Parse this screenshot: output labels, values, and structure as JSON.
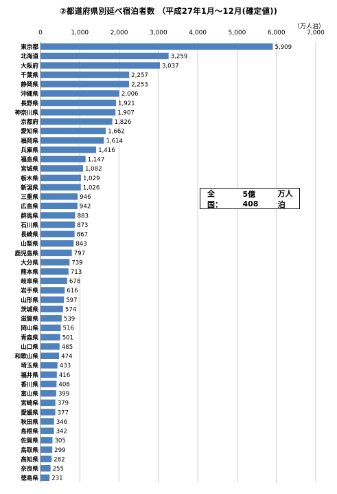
{
  "chart_data": {
    "type": "bar",
    "orientation": "horizontal",
    "title": "②都道府県別延べ宿泊者数 （平成27年1月～12月(確定値))",
    "unit": "（万人泊）",
    "xlim": [
      0,
      7000
    ],
    "ticks": [
      "0",
      "1,000",
      "2,000",
      "3,000",
      "4,000",
      "5,000",
      "6,000",
      "7,000"
    ],
    "grid": true,
    "bar_color": "#4f81bd",
    "categories": [
      "東京都",
      "北海道",
      "大阪府",
      "千葉県",
      "静岡県",
      "沖縄県",
      "長野県",
      "神奈川県",
      "京都府",
      "愛知県",
      "福岡県",
      "兵庫県",
      "福島県",
      "宮城県",
      "栃木県",
      "新潟県",
      "三重県",
      "広島県",
      "群馬県",
      "石川県",
      "長崎県",
      "山梨県",
      "鹿児島県",
      "大分県",
      "熊本県",
      "岐阜県",
      "岩手県",
      "山形県",
      "茨城県",
      "滋賀県",
      "岡山県",
      "青森県",
      "山口県",
      "和歌山県",
      "埼玉県",
      "福井県",
      "香川県",
      "富山県",
      "宮崎県",
      "愛媛県",
      "秋田県",
      "島根県",
      "佐賀県",
      "鳥取県",
      "高知県",
      "奈良県",
      "徳島県"
    ],
    "values": [
      5909,
      3259,
      3037,
      2257,
      2253,
      2006,
      1921,
      1907,
      1826,
      1662,
      1614,
      1416,
      1147,
      1082,
      1029,
      1026,
      946,
      942,
      883,
      873,
      867,
      843,
      797,
      739,
      713,
      678,
      616,
      597,
      574,
      539,
      516,
      501,
      485,
      474,
      433,
      416,
      408,
      399,
      379,
      377,
      346,
      342,
      305,
      299,
      282,
      255,
      231
    ],
    "value_labels": [
      "5,909",
      "3,259",
      "3,037",
      "2,257",
      "2,253",
      "2,006",
      "1,921",
      "1,907",
      "1,826",
      "1,662",
      "1,614",
      "1,416",
      "1,147",
      "1,082",
      "1,029",
      "1,026",
      "946",
      "942",
      "883",
      "873",
      "867",
      "843",
      "797",
      "739",
      "713",
      "678",
      "616",
      "597",
      "574",
      "539",
      "516",
      "501",
      "485",
      "474",
      "433",
      "416",
      "408",
      "399",
      "379",
      "377",
      "346",
      "342",
      "305",
      "299",
      "282",
      "255",
      "231"
    ]
  },
  "annotation": {
    "label": "全国：",
    "value": "5億408",
    "unit": "万人泊"
  }
}
